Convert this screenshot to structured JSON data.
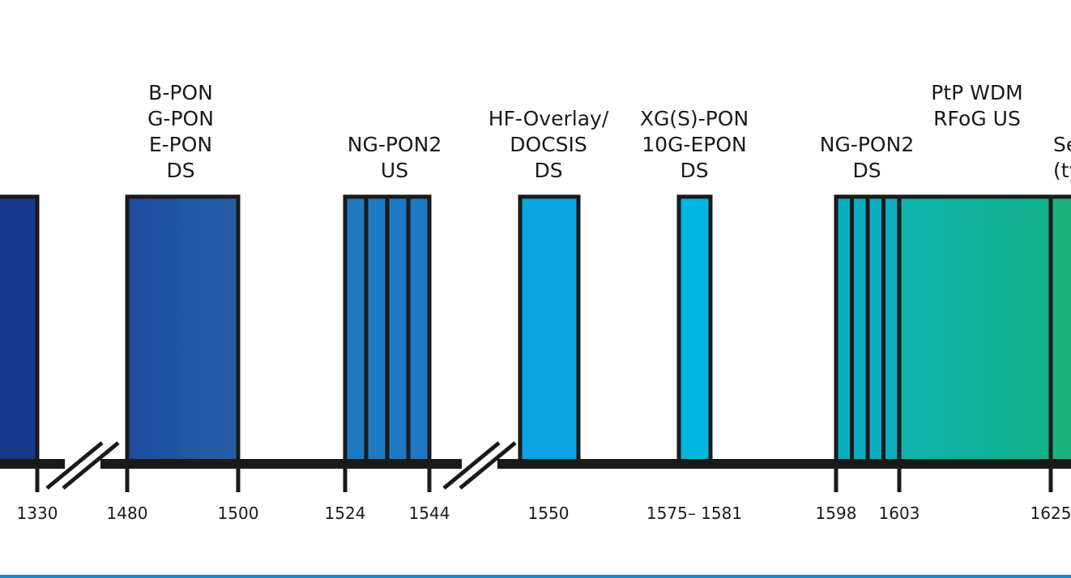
{
  "diagram": {
    "title": "",
    "colors": {
      "axis": "#1a1a1a",
      "outline": "#1a1a1a",
      "footer_rule": "#1e88c8"
    },
    "bands": [
      {
        "id": "band-1260-1360",
        "lines": [],
        "color_from": "#163a8c",
        "color_to": "#163a8c",
        "dividers": 0
      },
      {
        "id": "band-1480-1500",
        "lines": [
          "B-PON",
          "G-PON",
          "E-PON",
          "DS"
        ],
        "color_from": "#1d4c9e",
        "color_to": "#2a5fa8",
        "dividers": 0
      },
      {
        "id": "band-1524-1544",
        "lines": [
          "NG-PON2",
          "US"
        ],
        "color_from": "#1f79c2",
        "color_to": "#1f79c2",
        "dividers": 3
      },
      {
        "id": "band-1550",
        "lines": [
          "HF-Overlay/",
          "DOCSIS",
          "DS"
        ],
        "color_from": "#0aa2e4",
        "color_to": "#0aa2e4",
        "dividers": 0
      },
      {
        "id": "band-1575-1581",
        "lines": [
          "XG(S)-PON",
          "10G-EPON",
          "DS"
        ],
        "color_from": "#00b5de",
        "color_to": "#00b5de",
        "dividers": 0
      },
      {
        "id": "band-1598-1603",
        "lines": [
          "NG-PON2",
          "DS"
        ],
        "color_from": "#09afc0",
        "color_to": "#09afc0",
        "dividers": 3
      },
      {
        "id": "band-1603-1625",
        "lines": [
          "PtP WDM",
          "RFoG US"
        ],
        "color_from": "#0fb3ae",
        "color_to": "#14b28a",
        "dividers": 0
      },
      {
        "id": "band-1625-plus",
        "lines": [
          "Se",
          "(ty"
        ],
        "color_from": "#1cb27c",
        "color_to": "#1cb27c",
        "dividers": 0
      }
    ],
    "ticks": [
      {
        "id": "tick-1330",
        "label": "1330"
      },
      {
        "id": "tick-1480",
        "label": "1480"
      },
      {
        "id": "tick-1500",
        "label": "1500"
      },
      {
        "id": "tick-1524",
        "label": "1524"
      },
      {
        "id": "tick-1544",
        "label": "1544"
      },
      {
        "id": "tick-1550",
        "label": "1550"
      },
      {
        "id": "tick-1575-1581",
        "label": "1575– 1581"
      },
      {
        "id": "tick-1598",
        "label": "1598"
      },
      {
        "id": "tick-1603",
        "label": "1603"
      },
      {
        "id": "tick-1625",
        "label": "1625"
      }
    ],
    "axis_breaks": [
      "break-1",
      "break-2"
    ]
  }
}
